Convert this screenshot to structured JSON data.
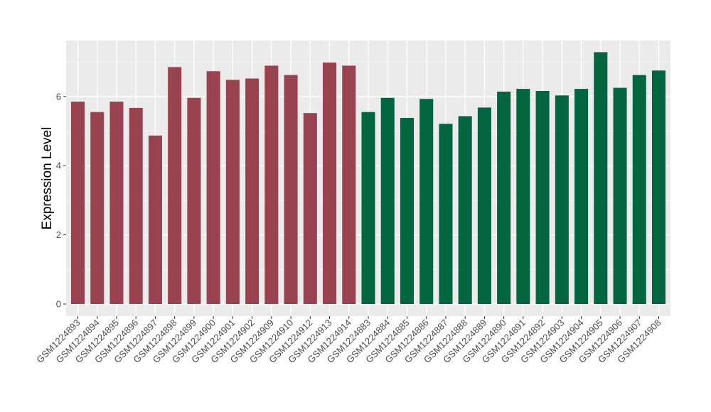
{
  "chart_data": {
    "type": "bar",
    "ylabel": "Expression Level",
    "xlabel": "",
    "ylim": [
      0,
      7.5
    ],
    "yticks": [
      "0",
      "2",
      "4",
      "6"
    ],
    "grid": true,
    "categories": [
      "GSM1224893",
      "GSM1224894",
      "GSM1224895",
      "GSM1224896",
      "GSM1224897",
      "GSM1224898",
      "GSM1224899",
      "GSM1224900",
      "GSM1224901",
      "GSM1224902",
      "GSM1224909",
      "GSM1224910",
      "GSM1224912",
      "GSM1224913",
      "GSM1224914",
      "GSM1224883",
      "GSM1224884",
      "GSM1224885",
      "GSM1224886",
      "GSM1224887",
      "GSM1224888",
      "GSM1224889",
      "GSM1224890",
      "GSM1224891",
      "GSM1224892",
      "GSM1224903",
      "GSM1224904",
      "GSM1224905",
      "GSM1224906",
      "GSM1224907",
      "GSM1224908"
    ],
    "values": [
      5.85,
      5.55,
      5.85,
      5.67,
      4.87,
      6.85,
      5.96,
      6.73,
      6.48,
      6.52,
      6.89,
      6.62,
      5.52,
      6.98,
      6.89,
      5.55,
      5.96,
      5.38,
      5.93,
      5.21,
      5.43,
      5.68,
      6.14,
      6.22,
      6.16,
      6.03,
      6.22,
      7.28,
      6.25,
      6.62,
      6.75
    ],
    "bar_colors": [
      "#9a4350",
      "#9a4350",
      "#9a4350",
      "#9a4350",
      "#9a4350",
      "#9a4350",
      "#9a4350",
      "#9a4350",
      "#9a4350",
      "#9a4350",
      "#9a4350",
      "#9a4350",
      "#9a4350",
      "#9a4350",
      "#9a4350",
      "#036641",
      "#036641",
      "#036641",
      "#036641",
      "#036641",
      "#036641",
      "#036641",
      "#036641",
      "#036641",
      "#036641",
      "#036641",
      "#036641",
      "#036641",
      "#036641",
      "#036641",
      "#036641"
    ],
    "colors": {
      "panel_background": "#ebebeb",
      "grid_major": "#ffffff",
      "tick_text": "#4d4d4d"
    }
  }
}
